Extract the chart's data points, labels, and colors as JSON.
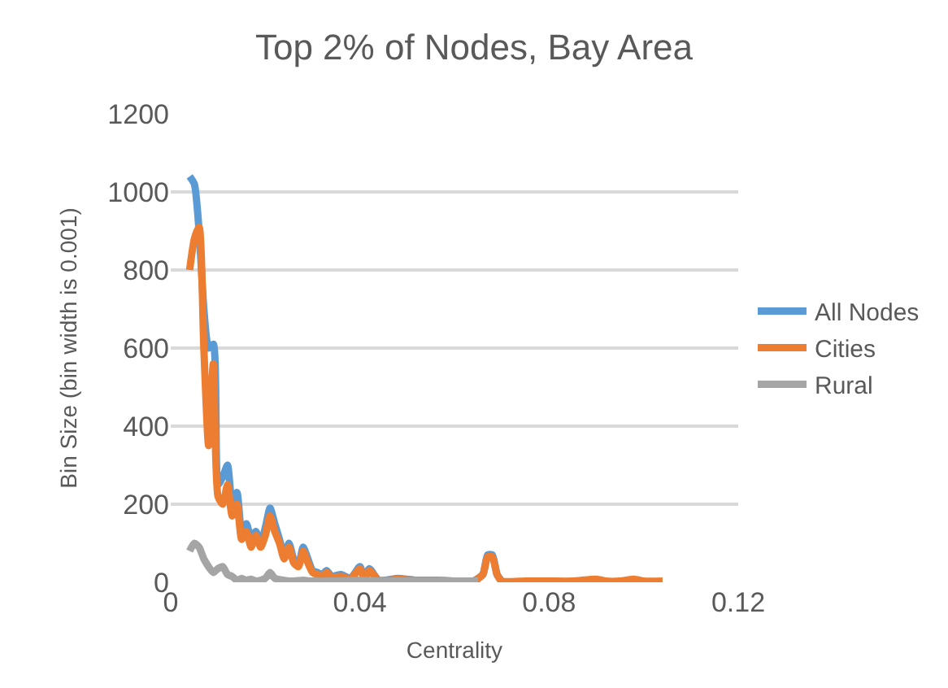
{
  "chart_data": {
    "type": "line",
    "title": "Top 2% of Nodes, Bay Area",
    "xlabel": "Centrality",
    "ylabel": "Bin Size (bin width is 0.001)",
    "xlim": [
      0,
      0.12
    ],
    "xticks": [
      0,
      0.04,
      0.08,
      0.12
    ],
    "ylim": [
      0,
      1200
    ],
    "yticks": [
      0,
      200,
      400,
      600,
      800,
      1000,
      1200
    ],
    "grid": "y",
    "legend": "right",
    "marker": "none",
    "line_style": "solid",
    "series": [
      {
        "name": "All Nodes",
        "color": "#5b9bd5",
        "x": [
          0.004,
          0.005,
          0.006,
          0.007,
          0.008,
          0.009,
          0.01,
          0.011,
          0.012,
          0.013,
          0.014,
          0.015,
          0.016,
          0.017,
          0.018,
          0.019,
          0.02,
          0.021,
          0.022,
          0.023,
          0.024,
          0.025,
          0.026,
          0.027,
          0.028,
          0.029,
          0.03,
          0.031,
          0.032,
          0.033,
          0.034,
          0.036,
          0.038,
          0.04,
          0.041,
          0.042,
          0.044,
          0.048,
          0.052,
          0.056,
          0.06,
          0.064,
          0.066,
          0.067,
          0.068,
          0.069,
          0.07
        ],
        "values": [
          1040,
          1020,
          900,
          700,
          600,
          610,
          250,
          270,
          300,
          200,
          230,
          130,
          150,
          110,
          130,
          100,
          140,
          190,
          150,
          110,
          70,
          100,
          60,
          45,
          90,
          60,
          30,
          25,
          20,
          30,
          15,
          20,
          10,
          40,
          10,
          35,
          5,
          10,
          5,
          5,
          3,
          3,
          20,
          70,
          70,
          20,
          3
        ]
      },
      {
        "name": "Cities",
        "color": "#ed7d31",
        "x": [
          0.004,
          0.005,
          0.006,
          0.007,
          0.008,
          0.009,
          0.01,
          0.011,
          0.012,
          0.013,
          0.014,
          0.015,
          0.016,
          0.017,
          0.018,
          0.019,
          0.02,
          0.021,
          0.022,
          0.023,
          0.024,
          0.025,
          0.026,
          0.027,
          0.028,
          0.029,
          0.03,
          0.031,
          0.032,
          0.033,
          0.034,
          0.036,
          0.038,
          0.04,
          0.041,
          0.042,
          0.044,
          0.048,
          0.052,
          0.056,
          0.06,
          0.064,
          0.066,
          0.067,
          0.068,
          0.069,
          0.07,
          0.075,
          0.08,
          0.085,
          0.09,
          0.092,
          0.095,
          0.098,
          0.1,
          0.104
        ],
        "values": [
          800,
          880,
          910,
          600,
          350,
          560,
          220,
          200,
          250,
          170,
          200,
          110,
          130,
          90,
          120,
          90,
          120,
          170,
          130,
          100,
          60,
          90,
          50,
          40,
          80,
          50,
          25,
          20,
          15,
          25,
          12,
          15,
          8,
          35,
          8,
          30,
          5,
          8,
          5,
          5,
          3,
          3,
          20,
          65,
          65,
          20,
          3,
          3,
          3,
          3,
          8,
          3,
          3,
          8,
          3,
          3
        ]
      },
      {
        "name": "Rural",
        "color": "#a5a5a5",
        "x": [
          0.004,
          0.005,
          0.006,
          0.007,
          0.008,
          0.009,
          0.01,
          0.011,
          0.012,
          0.013,
          0.014,
          0.015,
          0.016,
          0.017,
          0.018,
          0.019,
          0.02,
          0.021,
          0.022,
          0.024,
          0.026,
          0.028,
          0.03,
          0.034,
          0.04,
          0.045,
          0.05,
          0.055,
          0.06,
          0.065
        ],
        "values": [
          80,
          100,
          90,
          60,
          40,
          25,
          35,
          40,
          20,
          15,
          5,
          10,
          5,
          8,
          3,
          5,
          10,
          25,
          10,
          5,
          3,
          5,
          3,
          3,
          5,
          3,
          3,
          3,
          3,
          3
        ]
      }
    ]
  }
}
